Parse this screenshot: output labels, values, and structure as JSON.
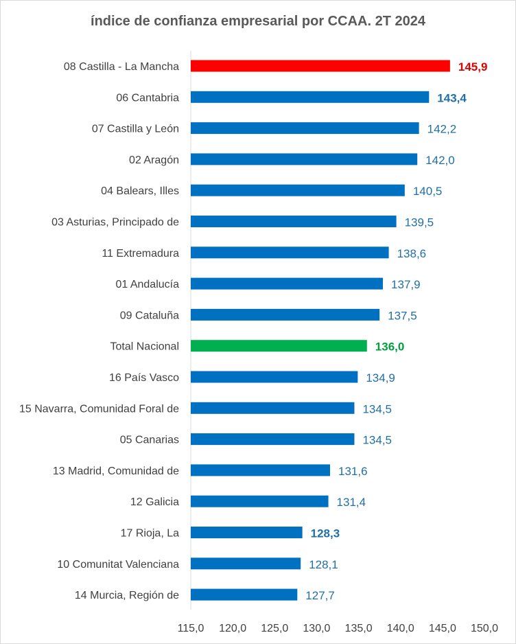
{
  "chart_data": {
    "type": "bar",
    "orientation": "horizontal",
    "title": "índice de confianza empresarial por CCAA. 2T 2024",
    "xlabel": "",
    "ylabel": "",
    "xlim": [
      115,
      150
    ],
    "ticks": [
      "115,0",
      "120,0",
      "125,0",
      "130,0",
      "135,0",
      "140,0",
      "145,0",
      "150,0"
    ],
    "tick_values": [
      115,
      120,
      125,
      130,
      135,
      140,
      145,
      150
    ],
    "grid": false,
    "legend": "none",
    "categories": [
      "08 Castilla - La Mancha",
      "06 Cantabria",
      "07 Castilla y León",
      "02 Aragón",
      "04 Balears, Illes",
      "03 Asturias, Principado de",
      "11 Extremadura",
      "01 Andalucía",
      "09 Cataluña",
      "Total Nacional",
      "16 País Vasco",
      "15 Navarra, Comunidad Foral de",
      "05 Canarias",
      "13 Madrid, Comunidad de",
      "12 Galicia",
      "17 Rioja, La",
      "10 Comunitat Valenciana",
      "14 Murcia, Región de"
    ],
    "values": [
      145.9,
      143.4,
      142.2,
      142.0,
      140.5,
      139.5,
      138.6,
      137.9,
      137.5,
      136.0,
      134.9,
      134.5,
      134.5,
      131.6,
      131.4,
      128.3,
      128.1,
      127.7
    ],
    "value_labels": [
      "145,9",
      "143,4",
      "142,2",
      "142,0",
      "140,5",
      "139,5",
      "138,6",
      "137,9",
      "137,5",
      "136,0",
      "134,9",
      "134,5",
      "134,5",
      "131,6",
      "131,4",
      "128,3",
      "128,1",
      "127,7"
    ],
    "bar_colors": [
      "#ff0000",
      "#0070c0",
      "#0070c0",
      "#0070c0",
      "#0070c0",
      "#0070c0",
      "#0070c0",
      "#0070c0",
      "#0070c0",
      "#00b050",
      "#0070c0",
      "#0070c0",
      "#0070c0",
      "#0070c0",
      "#0070c0",
      "#0070c0",
      "#0070c0",
      "#0070c0"
    ],
    "label_colors": [
      "#e00000",
      "#1f6fa8",
      "#1f6fa8",
      "#1f6fa8",
      "#1f6fa8",
      "#1f6fa8",
      "#1f6fa8",
      "#1f6fa8",
      "#1f6fa8",
      "#00a040",
      "#1f6fa8",
      "#1f6fa8",
      "#1f6fa8",
      "#1f6fa8",
      "#1f6fa8",
      "#1f6fa8",
      "#1f6fa8",
      "#1f6fa8"
    ],
    "label_bold": [
      true,
      true,
      false,
      false,
      false,
      false,
      false,
      false,
      false,
      true,
      false,
      false,
      false,
      false,
      false,
      true,
      false,
      false
    ]
  }
}
